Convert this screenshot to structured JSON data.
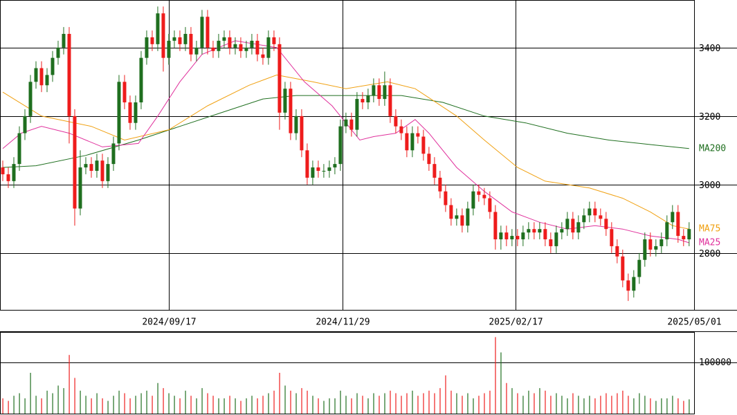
{
  "chart_data": [
    {
      "type": "candlestick",
      "xlim": [
        -0.5,
        124.9
      ],
      "xticks": [
        {
          "value": 30,
          "label": "2024/09/17"
        },
        {
          "value": 61.4,
          "label": "2024/11/29"
        },
        {
          "value": 92.6,
          "label": "2025/02/17"
        },
        {
          "value": 124.9,
          "label": "2025/05/01"
        }
      ],
      "ylim": [
        2634,
        3539
      ],
      "yticks": [
        2800,
        3000,
        3200,
        3400
      ],
      "grid": true,
      "up_color": "#1f6f1f",
      "down_color": "#ee1c1c",
      "open": [
        3050,
        3030,
        3010,
        3060,
        3150,
        3200,
        3300,
        3340,
        3290,
        3320,
        3370,
        3400,
        3440,
        3200,
        2930,
        3050,
        3060,
        3040,
        3070,
        3010,
        3060,
        3120,
        3300,
        3240,
        3180,
        3240,
        3370,
        3430,
        3410,
        3500,
        3370,
        3420,
        3430,
        3410,
        3440,
        3380,
        3400,
        3490,
        3400,
        3390,
        3420,
        3430,
        3400,
        3410,
        3390,
        3400,
        3420,
        3380,
        3370,
        3430,
        3410,
        3210,
        3280,
        3150,
        3200,
        3100,
        3020,
        3050,
        3040,
        3040,
        3050,
        3060,
        3170,
        3190,
        3160,
        3250,
        3240,
        3260,
        3290,
        3250,
        3290,
        3200,
        3170,
        3150,
        3100,
        3150,
        3140,
        3090,
        3060,
        3020,
        2980,
        2940,
        2900,
        2910,
        2880,
        2930,
        2980,
        2970,
        2960,
        2920,
        2840,
        2860,
        2840,
        2850,
        2840,
        2860,
        2870,
        2860,
        2870,
        2840,
        2820,
        2860,
        2870,
        2900,
        2860,
        2890,
        2910,
        2930,
        2910,
        2900,
        2870,
        2820,
        2790,
        2720,
        2690,
        2730,
        2780,
        2840,
        2810,
        2820,
        2840,
        2890,
        2920,
        2850,
        2840
      ],
      "high": [
        3070,
        3050,
        3080,
        3170,
        3220,
        3320,
        3360,
        3360,
        3340,
        3390,
        3420,
        3460,
        3460,
        3220,
        3100,
        3080,
        3080,
        3090,
        3090,
        3080,
        3140,
        3320,
        3320,
        3260,
        3260,
        3390,
        3450,
        3450,
        3520,
        3520,
        3440,
        3450,
        3450,
        3460,
        3460,
        3420,
        3510,
        3510,
        3420,
        3440,
        3450,
        3450,
        3430,
        3430,
        3420,
        3440,
        3440,
        3400,
        3450,
        3450,
        3430,
        3300,
        3300,
        3220,
        3220,
        3120,
        3070,
        3070,
        3060,
        3070,
        3080,
        3190,
        3210,
        3210,
        3270,
        3270,
        3280,
        3310,
        3310,
        3330,
        3310,
        3220,
        3190,
        3170,
        3170,
        3170,
        3160,
        3110,
        3080,
        3040,
        3000,
        2960,
        2930,
        2930,
        2950,
        3000,
        3000,
        2990,
        2980,
        2940,
        2880,
        2880,
        2870,
        2870,
        2880,
        2890,
        2890,
        2890,
        2890,
        2860,
        2880,
        2890,
        2920,
        2920,
        2910,
        2930,
        2950,
        2950,
        2930,
        2920,
        2890,
        2840,
        2810,
        2740,
        2750,
        2800,
        2860,
        2860,
        2840,
        2860,
        2910,
        2940,
        2940,
        2870,
        2890
      ],
      "low": [
        3010,
        2990,
        2990,
        3040,
        3130,
        3180,
        3280,
        3270,
        3270,
        3300,
        3350,
        3380,
        3120,
        2880,
        2910,
        3030,
        3020,
        3020,
        2990,
        2990,
        3040,
        3100,
        3220,
        3160,
        3160,
        3220,
        3350,
        3390,
        3390,
        3330,
        3350,
        3400,
        3390,
        3390,
        3360,
        3360,
        3380,
        3380,
        3370,
        3370,
        3400,
        3380,
        3380,
        3370,
        3370,
        3380,
        3360,
        3350,
        3350,
        3390,
        3160,
        3190,
        3130,
        3130,
        3080,
        3000,
        3000,
        3020,
        3020,
        3020,
        3030,
        3040,
        3150,
        3140,
        3140,
        3220,
        3220,
        3240,
        3230,
        3230,
        3180,
        3150,
        3130,
        3080,
        3080,
        3120,
        3070,
        3040,
        3000,
        2960,
        2920,
        2880,
        2880,
        2860,
        2860,
        2910,
        2950,
        2940,
        2900,
        2810,
        2810,
        2820,
        2820,
        2820,
        2820,
        2840,
        2840,
        2840,
        2820,
        2800,
        2800,
        2840,
        2850,
        2840,
        2840,
        2870,
        2890,
        2890,
        2880,
        2850,
        2800,
        2770,
        2700,
        2660,
        2670,
        2710,
        2760,
        2790,
        2790,
        2800,
        2820,
        2870,
        2830,
        2820,
        2820
      ],
      "close": [
        3030,
        3010,
        3060,
        3150,
        3200,
        3300,
        3340,
        3290,
        3320,
        3370,
        3400,
        3440,
        3200,
        2930,
        3050,
        3060,
        3040,
        3070,
        3010,
        3060,
        3120,
        3300,
        3240,
        3180,
        3240,
        3370,
        3430,
        3410,
        3500,
        3370,
        3420,
        3430,
        3410,
        3440,
        3380,
        3400,
        3490,
        3400,
        3390,
        3420,
        3430,
        3400,
        3410,
        3390,
        3400,
        3420,
        3380,
        3370,
        3430,
        3410,
        3210,
        3280,
        3150,
        3200,
        3100,
        3020,
        3050,
        3040,
        3040,
        3050,
        3060,
        3170,
        3190,
        3160,
        3250,
        3240,
        3260,
        3290,
        3250,
        3290,
        3200,
        3170,
        3150,
        3100,
        3150,
        3140,
        3090,
        3060,
        3020,
        2980,
        2940,
        2900,
        2910,
        2880,
        2930,
        2980,
        2970,
        2960,
        2920,
        2840,
        2860,
        2840,
        2850,
        2840,
        2860,
        2870,
        2860,
        2870,
        2840,
        2820,
        2860,
        2870,
        2900,
        2860,
        2890,
        2910,
        2930,
        2910,
        2900,
        2870,
        2820,
        2790,
        2720,
        2690,
        2730,
        2780,
        2840,
        2810,
        2820,
        2840,
        2890,
        2920,
        2850,
        2840,
        2870
      ],
      "series": [
        {
          "name": "MA200",
          "color": "#1e6e1e",
          "x": [
            0,
            6,
            15,
            24.5,
            32,
            39.5,
            47,
            53,
            62,
            72,
            79.5,
            87,
            94.5,
            102,
            109.5,
            118,
            124
          ],
          "values": [
            3050,
            3055,
            3085,
            3130,
            3170,
            3210,
            3250,
            3260,
            3260,
            3260,
            3240,
            3200,
            3180,
            3150,
            3130,
            3115,
            3105
          ]
        },
        {
          "name": "MA75",
          "color": "#f0a010",
          "x": [
            0,
            7,
            16,
            22,
            30,
            37,
            44.5,
            49.5,
            56,
            62,
            69.5,
            74.5,
            82,
            87,
            93,
            98,
            106,
            112,
            117,
            121,
            124
          ],
          "values": [
            3270,
            3200,
            3170,
            3130,
            3160,
            3230,
            3290,
            3320,
            3300,
            3280,
            3300,
            3280,
            3200,
            3130,
            3050,
            3010,
            2990,
            2960,
            2920,
            2880,
            2870
          ]
        },
        {
          "name": "MA25",
          "color": "#e0309c",
          "x": [
            0,
            3.3,
            7,
            12,
            18,
            24.5,
            28,
            32,
            36,
            42,
            49.5,
            54.5,
            59.5,
            64.5,
            67,
            71,
            74.5,
            77,
            82,
            87,
            92,
            97,
            102,
            107,
            112,
            117,
            122,
            124
          ],
          "values": [
            3105,
            3150,
            3170,
            3150,
            3110,
            3120,
            3200,
            3300,
            3380,
            3420,
            3400,
            3300,
            3230,
            3130,
            3140,
            3150,
            3190,
            3150,
            3050,
            2980,
            2920,
            2890,
            2870,
            2880,
            2870,
            2850,
            2840,
            2830
          ]
        }
      ]
    },
    {
      "type": "bar",
      "xlim": [
        -0.5,
        124.9
      ],
      "ylim": [
        0,
        160000
      ],
      "yticks": [
        100000
      ],
      "grid": true,
      "values": [
        30000,
        25000,
        35000,
        40000,
        30000,
        80000,
        35000,
        30000,
        45000,
        40000,
        55000,
        50000,
        115000,
        70000,
        45000,
        35000,
        30000,
        40000,
        30000,
        25000,
        35000,
        45000,
        40000,
        30000,
        35000,
        40000,
        45000,
        35000,
        60000,
        50000,
        40000,
        35000,
        30000,
        45000,
        35000,
        30000,
        50000,
        40000,
        35000,
        30000,
        30000,
        35000,
        30000,
        25000,
        30000,
        35000,
        30000,
        35000,
        40000,
        45000,
        80000,
        55000,
        45000,
        40000,
        50000,
        45000,
        35000,
        30000,
        25000,
        30000,
        30000,
        45000,
        35000,
        30000,
        40000,
        35000,
        30000,
        40000,
        35000,
        40000,
        45000,
        40000,
        35000,
        40000,
        45000,
        35000,
        40000,
        45000,
        40000,
        50000,
        75000,
        45000,
        40000,
        35000,
        40000,
        30000,
        35000,
        40000,
        45000,
        150000,
        120000,
        60000,
        50000,
        40000,
        35000,
        45000,
        40000,
        50000,
        45000,
        35000,
        40000,
        35000,
        30000,
        40000,
        35000,
        30000,
        35000,
        30000,
        35000,
        40000,
        35000,
        40000,
        45000,
        35000,
        30000,
        40000,
        35000,
        30000,
        25000,
        30000,
        30000,
        35000,
        30000,
        25000,
        28000
      ]
    }
  ]
}
